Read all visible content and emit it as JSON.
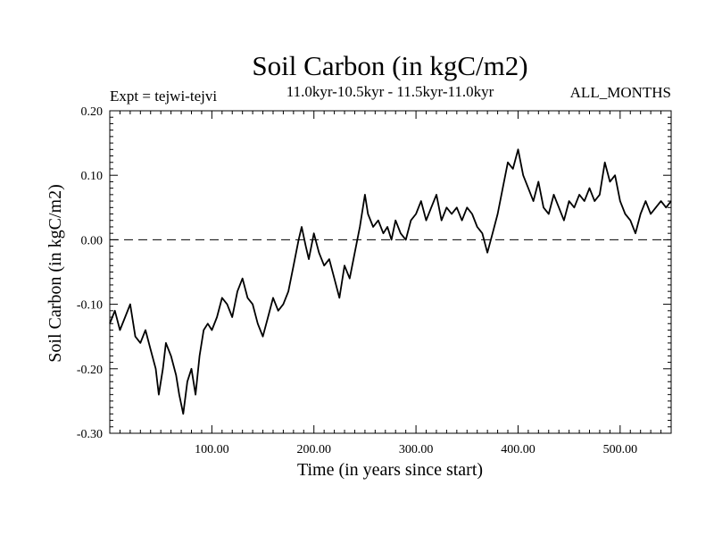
{
  "chart_data": {
    "type": "line",
    "title": "Soil Carbon (in kgC/m2)",
    "subtitle": "11.0kyr-10.5kyr - 11.5kyr-11.0kyr",
    "left_note": "Expt = tejwi-tejvi",
    "right_note": "ALL_MONTHS",
    "xlabel": "Time (in years since start)",
    "ylabel": "Soil Carbon (in kgC/m2)",
    "xlim": [
      0,
      550
    ],
    "ylim": [
      -0.3,
      0.2
    ],
    "x_ticks": [
      100,
      200,
      300,
      400,
      500
    ],
    "x_tick_labels": [
      "100.00",
      "200.00",
      "300.00",
      "400.00",
      "500.00"
    ],
    "y_ticks": [
      -0.3,
      -0.2,
      -0.1,
      0.0,
      0.1,
      0.2
    ],
    "y_tick_labels": [
      "-0.30",
      "-0.20",
      "-0.10",
      "0.00",
      "0.10",
      "0.20"
    ],
    "reference_line": {
      "y": 0.0,
      "style": "dashed"
    },
    "series": [
      {
        "name": "Soil Carbon",
        "x": [
          0,
          5,
          10,
          15,
          20,
          25,
          30,
          35,
          40,
          45,
          48,
          52,
          55,
          60,
          65,
          68,
          72,
          76,
          80,
          84,
          88,
          92,
          96,
          100,
          105,
          110,
          115,
          120,
          125,
          130,
          135,
          140,
          145,
          150,
          155,
          160,
          165,
          170,
          175,
          180,
          185,
          188,
          192,
          195,
          200,
          205,
          210,
          215,
          220,
          225,
          230,
          235,
          240,
          245,
          250,
          253,
          258,
          263,
          268,
          272,
          276,
          280,
          285,
          290,
          295,
          300,
          305,
          310,
          315,
          320,
          325,
          330,
          335,
          340,
          345,
          350,
          355,
          360,
          365,
          370,
          375,
          380,
          385,
          390,
          395,
          400,
          405,
          410,
          415,
          420,
          425,
          430,
          435,
          440,
          445,
          450,
          455,
          460,
          465,
          470,
          475,
          480,
          485,
          490,
          495,
          500,
          505,
          510,
          515,
          520,
          525,
          530,
          535,
          540,
          545,
          550
        ],
        "values": [
          -0.13,
          -0.11,
          -0.14,
          -0.12,
          -0.1,
          -0.15,
          -0.16,
          -0.14,
          -0.17,
          -0.2,
          -0.24,
          -0.2,
          -0.16,
          -0.18,
          -0.21,
          -0.24,
          -0.27,
          -0.22,
          -0.2,
          -0.24,
          -0.18,
          -0.14,
          -0.13,
          -0.14,
          -0.12,
          -0.09,
          -0.1,
          -0.12,
          -0.08,
          -0.06,
          -0.09,
          -0.1,
          -0.13,
          -0.15,
          -0.12,
          -0.09,
          -0.11,
          -0.1,
          -0.08,
          -0.04,
          0.0,
          0.02,
          -0.01,
          -0.03,
          0.01,
          -0.02,
          -0.04,
          -0.03,
          -0.06,
          -0.09,
          -0.04,
          -0.06,
          -0.02,
          0.02,
          0.07,
          0.04,
          0.02,
          0.03,
          0.01,
          0.02,
          0.0,
          0.03,
          0.01,
          0.0,
          0.03,
          0.04,
          0.06,
          0.03,
          0.05,
          0.07,
          0.03,
          0.05,
          0.04,
          0.05,
          0.03,
          0.05,
          0.04,
          0.02,
          0.01,
          -0.02,
          0.01,
          0.04,
          0.08,
          0.12,
          0.11,
          0.14,
          0.1,
          0.08,
          0.06,
          0.09,
          0.05,
          0.04,
          0.07,
          0.05,
          0.03,
          0.06,
          0.05,
          0.07,
          0.06,
          0.08,
          0.06,
          0.07,
          0.12,
          0.09,
          0.1,
          0.06,
          0.04,
          0.03,
          0.01,
          0.04,
          0.06,
          0.04,
          0.05,
          0.06,
          0.05,
          0.06
        ]
      }
    ]
  }
}
